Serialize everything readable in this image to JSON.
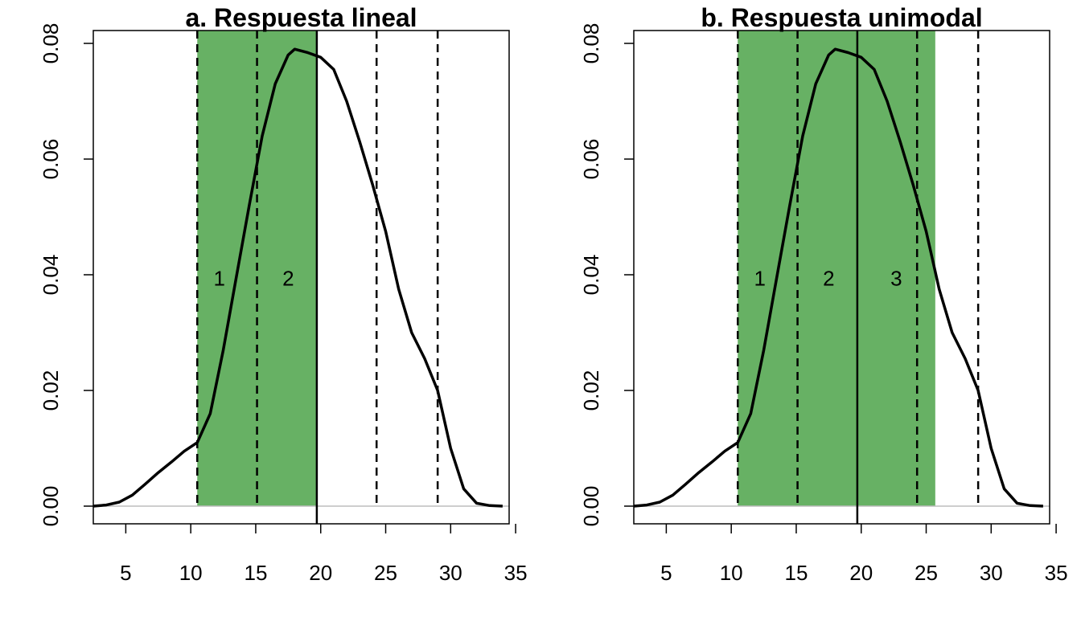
{
  "chart_data": [
    {
      "type": "area",
      "title": "a. Respuesta lineal",
      "xlabel": "",
      "ylabel": "",
      "xlim": [
        2.5,
        34.5
      ],
      "ylim": [
        0,
        0.08
      ],
      "x_ticks": [
        5,
        10,
        15,
        20,
        25,
        30,
        35
      ],
      "y_ticks": [
        0.0,
        0.02,
        0.04,
        0.06,
        0.08
      ],
      "y_tick_labels": [
        "0.00",
        "0.02",
        "0.04",
        "0.06",
        "0.08"
      ],
      "shaded_range": [
        10.5,
        19.7
      ],
      "shade_color": "#67b164",
      "dashed_vlines": [
        10.5,
        15.1,
        24.3,
        29.0
      ],
      "solid_vlines": [
        19.7
      ],
      "region_labels": [
        {
          "text": "1",
          "x": 12.2,
          "y": 0.0395
        },
        {
          "text": "2",
          "x": 17.5,
          "y": 0.0395
        }
      ],
      "density": {
        "x": [
          2.5,
          3.5,
          4.5,
          5.5,
          6.5,
          7.5,
          8.5,
          9.5,
          10.5,
          11.5,
          12.5,
          13.5,
          14.5,
          15.5,
          16.5,
          17.5,
          18.0,
          19.0,
          20.0,
          21.0,
          22.0,
          23.0,
          24.0,
          25.0,
          26.0,
          27.0,
          28.0,
          29.0,
          30.0,
          31.0,
          32.0,
          33.0,
          34.0
        ],
        "y": [
          0.0,
          0.0002,
          0.0007,
          0.0019,
          0.0038,
          0.0058,
          0.0076,
          0.0095,
          0.011,
          0.016,
          0.027,
          0.0395,
          0.052,
          0.064,
          0.073,
          0.078,
          0.079,
          0.0784,
          0.0776,
          0.0755,
          0.07,
          0.063,
          0.0555,
          0.0475,
          0.0375,
          0.03,
          0.0255,
          0.02,
          0.01,
          0.003,
          0.0005,
          0.0001,
          0.0
        ]
      },
      "grid": false
    },
    {
      "type": "area",
      "title": "b. Respuesta unimodal",
      "xlabel": "",
      "ylabel": "",
      "xlim": [
        2.5,
        34.5
      ],
      "ylim": [
        0,
        0.08
      ],
      "x_ticks": [
        5,
        10,
        15,
        20,
        25,
        30,
        35
      ],
      "y_ticks": [
        0.0,
        0.02,
        0.04,
        0.06,
        0.08
      ],
      "y_tick_labels": [
        "0.00",
        "0.02",
        "0.04",
        "0.06",
        "0.08"
      ],
      "shaded_range": [
        10.5,
        25.7
      ],
      "shade_color": "#67b164",
      "dashed_vlines": [
        10.5,
        15.1,
        24.3,
        29.0
      ],
      "solid_vlines": [
        19.7
      ],
      "region_labels": [
        {
          "text": "1",
          "x": 12.2,
          "y": 0.0395
        },
        {
          "text": "2",
          "x": 17.5,
          "y": 0.0395
        },
        {
          "text": "3",
          "x": 22.7,
          "y": 0.0395
        }
      ],
      "density": {
        "x": [
          2.5,
          3.5,
          4.5,
          5.5,
          6.5,
          7.5,
          8.5,
          9.5,
          10.5,
          11.5,
          12.5,
          13.5,
          14.5,
          15.5,
          16.5,
          17.5,
          18.0,
          19.0,
          20.0,
          21.0,
          22.0,
          23.0,
          24.0,
          25.0,
          26.0,
          27.0,
          28.0,
          29.0,
          30.0,
          31.0,
          32.0,
          33.0,
          34.0
        ],
        "y": [
          0.0,
          0.0002,
          0.0007,
          0.0019,
          0.0038,
          0.0058,
          0.0076,
          0.0095,
          0.011,
          0.016,
          0.027,
          0.0395,
          0.052,
          0.064,
          0.073,
          0.078,
          0.079,
          0.0784,
          0.0776,
          0.0755,
          0.07,
          0.063,
          0.0555,
          0.0475,
          0.0375,
          0.03,
          0.0255,
          0.02,
          0.01,
          0.003,
          0.0005,
          0.0001,
          0.0
        ]
      },
      "grid": false
    }
  ]
}
